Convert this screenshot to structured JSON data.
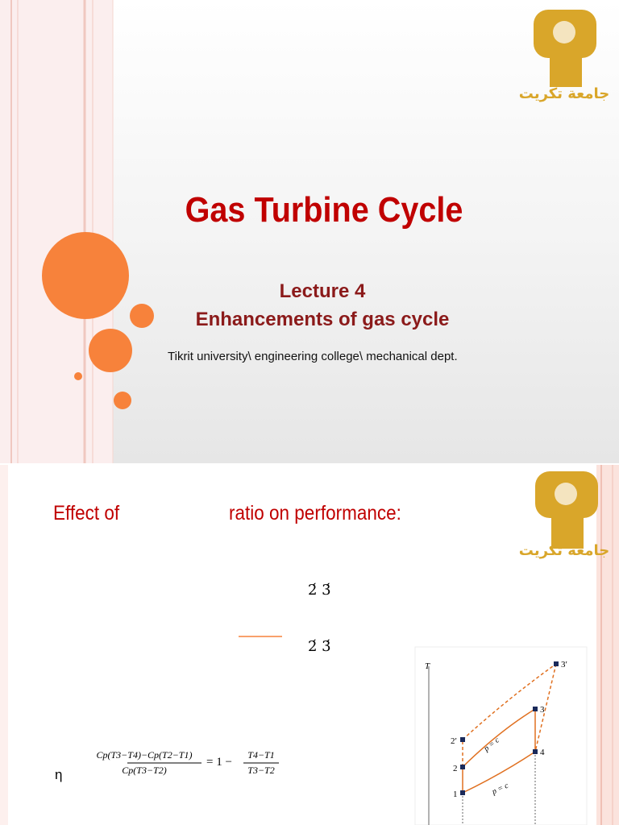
{
  "slides": [
    {
      "logo_text": "جامعة تكريت",
      "title": "Gas Turbine Cycle",
      "lecture": "Lecture 4",
      "subtitle": "Enhancements of gas cycle",
      "affiliation": "Tikrit university\\ engineering college\\ mechanical dept."
    },
    {
      "logo_text": "جامعة تكريت",
      "heading_left": "Effect of",
      "heading_right": "ratio on performance:",
      "marks_1": "2́ 3́",
      "marks_2": "2́ 3́",
      "eta": "η",
      "formula": {
        "numerator": "Cp(T3−T4)−Cp(T2−T1)",
        "denominator": "Cp(T3−T2)",
        "equals": "= 1 −",
        "right_numerator": "T4−T1",
        "right_denominator": "T3−T2"
      },
      "diagram": {
        "axis": "T",
        "points": [
          "1",
          "2",
          "2′",
          "3",
          "3′",
          "4"
        ],
        "process_labels": [
          "p = c",
          "p = c"
        ]
      }
    }
  ]
}
